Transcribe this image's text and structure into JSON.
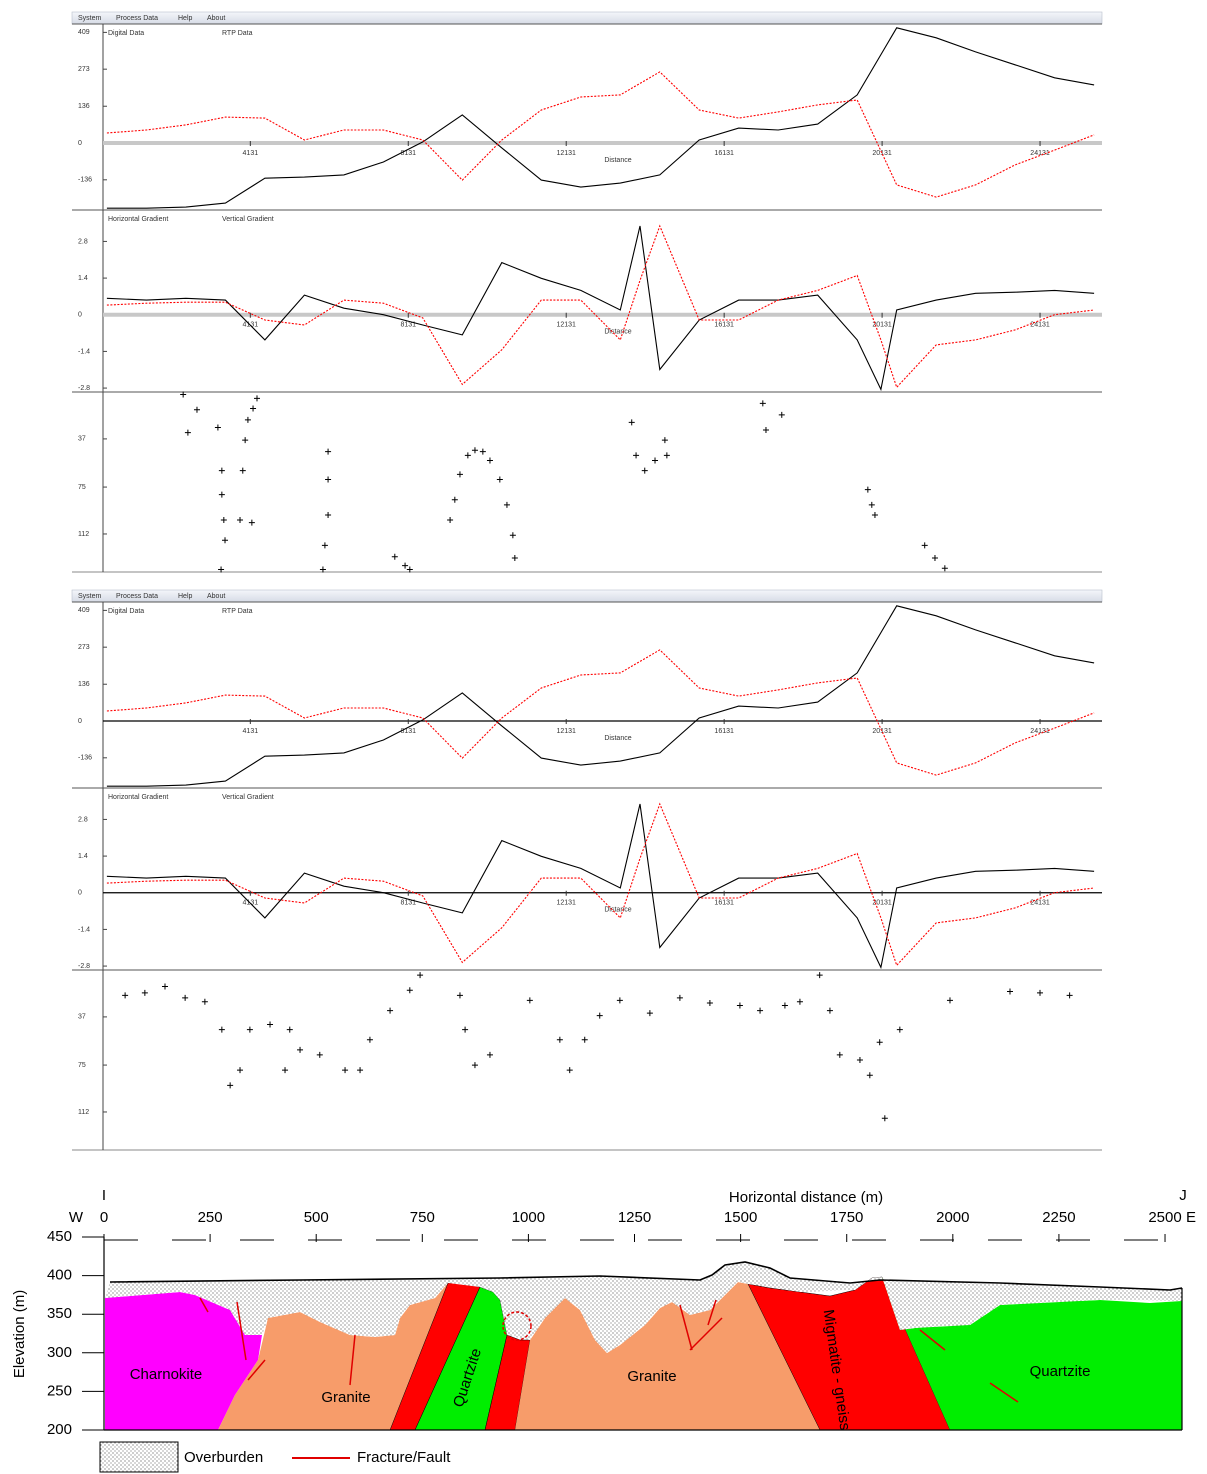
{
  "screens": [
    {
      "menu": [
        "System",
        "Process Data",
        "Help",
        "About"
      ]
    },
    {
      "menu": [
        "System",
        "Process Data",
        "Help",
        "About"
      ]
    }
  ],
  "chart_data": [
    {
      "type": "line",
      "xlabel": "Distance",
      "xlim": [
        400,
        25700
      ],
      "ylim": [
        -255,
        440
      ],
      "xticks": [
        4131,
        8131,
        12131,
        16131,
        20131,
        24131
      ],
      "yticks": [
        409,
        273,
        136,
        0,
        -136
      ],
      "x": [
        500,
        1500,
        2500,
        3500,
        4500,
        5500,
        6500,
        7500,
        8500,
        9500,
        10500,
        11500,
        12500,
        13500,
        14500,
        15500,
        16500,
        17500,
        18500,
        19500,
        20500,
        21500,
        22500,
        23500,
        24500,
        25500
      ],
      "series": [
        {
          "name": "Digital Data",
          "color": "#000000",
          "values": [
            -241,
            -241,
            -237,
            -222,
            -130,
            -126,
            -118,
            -70,
            4,
            104,
            -18,
            -137,
            -163,
            -148,
            -118,
            11,
            55,
            48,
            70,
            178,
            426,
            389,
            337,
            289,
            241,
            215
          ]
        },
        {
          "name": "RTP Data",
          "color": "#ff0000",
          "values": [
            37,
            48,
            67,
            96,
            92,
            11,
            48,
            48,
            11,
            -137,
            11,
            122,
            170,
            178,
            263,
            122,
            92,
            115,
            141,
            159,
            -155,
            -200,
            -155,
            -81,
            -26,
            30
          ]
        }
      ]
    },
    {
      "type": "line",
      "xlabel": "Distance",
      "xlim": [
        400,
        25700
      ],
      "ylim": [
        -2.95,
        4.0
      ],
      "xticks": [
        4131,
        8131,
        12131,
        16131,
        20131,
        24131
      ],
      "yticks": [
        2.8,
        1.4,
        0,
        -1.4,
        -2.8
      ],
      "x": [
        500,
        1500,
        2500,
        3500,
        4500,
        5500,
        6500,
        7500,
        8500,
        9500,
        10500,
        11500,
        12500,
        13500,
        14000,
        14500,
        15500,
        16500,
        17500,
        18500,
        19500,
        20100,
        20500,
        21500,
        22500,
        23500,
        24500,
        25500
      ],
      "series": [
        {
          "name": "Horizontal Gradient",
          "color": "#000000",
          "values": [
            0.63,
            0.56,
            0.63,
            0.56,
            -0.96,
            0.75,
            0.25,
            0,
            -0.39,
            -0.77,
            1.99,
            1.39,
            0.93,
            0.18,
            3.39,
            -2.09,
            -0.2,
            0.56,
            0.56,
            0.75,
            -0.96,
            -2.85,
            0.18,
            0.56,
            0.82,
            0.86,
            0.93,
            0.82
          ]
        },
        {
          "name": "Vertical Gradient",
          "color": "#ff0000",
          "values": [
            0.37,
            0.44,
            0.48,
            0.48,
            -0.2,
            -0.39,
            0.56,
            0.44,
            -0.12,
            -2.66,
            -1.34,
            0.56,
            0.56,
            -0.96,
            1.31,
            3.39,
            -0.2,
            -0.2,
            0.56,
            0.93,
            1.5,
            -0.96,
            -2.77,
            -1.15,
            -0.96,
            -0.58,
            0,
            0.18
          ]
        }
      ]
    },
    {
      "type": "scatter",
      "color": "#000000",
      "xlim": [
        400,
        25700
      ],
      "ylim": [
        142,
        0
      ],
      "yticks": [
        37,
        75,
        112
      ],
      "x": [
        2430,
        2550,
        2780,
        3310,
        3410,
        3410,
        3460,
        3490,
        3390,
        3870,
        3940,
        4000,
        4070,
        4200,
        4300,
        4170,
        6100,
        6100,
        6100,
        6020,
        5970,
        7790,
        8050,
        8170,
        9190,
        9310,
        9440,
        9640,
        9820,
        10020,
        10200,
        10450,
        10630,
        10780,
        10830,
        13790,
        13900,
        14120,
        14380,
        14630,
        14680,
        17110,
        17190,
        17590,
        19770,
        19870,
        19950,
        21210,
        21470,
        21720
      ],
      "values": [
        2,
        32,
        14,
        28,
        62,
        81,
        101,
        117,
        140,
        101,
        62,
        38,
        22,
        13,
        5,
        103,
        47,
        69,
        97,
        121,
        140,
        130,
        137,
        140,
        101,
        85,
        65,
        50,
        46,
        47,
        54,
        69,
        89,
        113,
        131,
        24,
        50,
        62,
        54,
        38,
        50,
        9,
        30,
        18,
        77,
        89,
        97,
        121,
        131,
        139
      ]
    },
    {
      "type": "line",
      "xlabel": "Distance",
      "xlim": [
        400,
        25700
      ],
      "ylim": [
        -255,
        440
      ],
      "xticks": [
        4131,
        8131,
        12131,
        16131,
        20131,
        24131
      ],
      "yticks": [
        409,
        273,
        136,
        0,
        -136
      ],
      "x": [
        500,
        1500,
        2500,
        3500,
        4500,
        5500,
        6500,
        7500,
        8500,
        9500,
        10500,
        11500,
        12500,
        13500,
        14500,
        15500,
        16500,
        17500,
        18500,
        19500,
        20500,
        21500,
        22500,
        23500,
        24500,
        25500
      ],
      "series": [
        {
          "name": "Digital Data",
          "color": "#000000",
          "values": [
            -241,
            -241,
            -237,
            -222,
            -130,
            -126,
            -118,
            -70,
            4,
            104,
            -18,
            -137,
            -163,
            -148,
            -118,
            11,
            55,
            48,
            70,
            178,
            426,
            389,
            337,
            289,
            241,
            215
          ]
        },
        {
          "name": "RTP Data",
          "color": "#ff0000",
          "values": [
            37,
            48,
            67,
            96,
            92,
            11,
            48,
            48,
            11,
            -137,
            11,
            122,
            170,
            178,
            263,
            122,
            92,
            115,
            141,
            159,
            -155,
            -200,
            -155,
            -81,
            -26,
            30
          ]
        }
      ]
    },
    {
      "type": "line",
      "xlabel": "Distance",
      "xlim": [
        400,
        25700
      ],
      "ylim": [
        -2.95,
        4.0
      ],
      "xticks": [
        4131,
        8131,
        12131,
        16131,
        20131,
        24131
      ],
      "yticks": [
        2.8,
        1.4,
        0,
        -1.4,
        -2.8
      ],
      "x": [
        500,
        1500,
        2500,
        3500,
        4500,
        5500,
        6500,
        7500,
        8500,
        9500,
        10500,
        11500,
        12500,
        13500,
        14000,
        14500,
        15500,
        16500,
        17500,
        18500,
        19500,
        20100,
        20500,
        21500,
        22500,
        23500,
        24500,
        25500
      ],
      "series": [
        {
          "name": "Horizontal Gradient",
          "color": "#000000",
          "values": [
            0.63,
            0.56,
            0.63,
            0.56,
            -0.96,
            0.75,
            0.25,
            0,
            -0.39,
            -0.77,
            1.99,
            1.39,
            0.93,
            0.18,
            3.39,
            -2.09,
            -0.2,
            0.56,
            0.56,
            0.75,
            -0.96,
            -2.85,
            0.18,
            0.56,
            0.82,
            0.86,
            0.93,
            0.82
          ]
        },
        {
          "name": "Vertical Gradient",
          "color": "#ff0000",
          "values": [
            0.37,
            0.44,
            0.48,
            0.48,
            -0.2,
            -0.39,
            0.56,
            0.44,
            -0.12,
            -2.66,
            -1.34,
            0.56,
            0.56,
            -0.96,
            1.31,
            3.39,
            -0.2,
            -0.2,
            0.56,
            0.93,
            1.5,
            -0.96,
            -2.77,
            -1.15,
            -0.96,
            -0.58,
            0,
            0.18
          ]
        }
      ]
    },
    {
      "type": "scatter",
      "color": "#000000",
      "xlim": [
        400,
        25700
      ],
      "ylim": [
        142,
        0
      ],
      "yticks": [
        37,
        75,
        112
      ],
      "x": [
        960,
        1460,
        1970,
        2480,
        2980,
        3410,
        3620,
        3870,
        4120,
        4630,
        5130,
        5010,
        5390,
        5890,
        6530,
        6910,
        7160,
        7670,
        8170,
        8430,
        9440,
        9570,
        9820,
        10200,
        11210,
        11970,
        12220,
        12600,
        12980,
        13490,
        14250,
        15010,
        15770,
        16530,
        17040,
        17670,
        18050,
        18550,
        18810,
        19060,
        19570,
        19820,
        20070,
        20580,
        20200,
        21850,
        23370,
        24130,
        24880
      ],
      "values": [
        20,
        18,
        13,
        22,
        25,
        47,
        91,
        79,
        47,
        43,
        47,
        79,
        63,
        67,
        79,
        79,
        55,
        32,
        16,
        4,
        20,
        47,
        75,
        67,
        24,
        55,
        79,
        55,
        36,
        24,
        34,
        22,
        26,
        28,
        32,
        28,
        25,
        4,
        32,
        67,
        71,
        83,
        57,
        47,
        117,
        24,
        17,
        18,
        20
      ]
    },
    {
      "type": "section",
      "title": "Horizontal distance (m)",
      "ylabel": "Elevation (m)",
      "start_label": "I",
      "end_label": "J",
      "west_label": "W",
      "east_label": "E",
      "xlim": [
        0,
        2540
      ],
      "ylim": [
        200,
        450
      ],
      "xticks": [
        0,
        250,
        500,
        750,
        1000,
        1250,
        1500,
        1750,
        2000,
        2250,
        2500
      ],
      "yticks": [
        200,
        250,
        300,
        350,
        400,
        450
      ],
      "units": [
        "Charnokite",
        "Granite",
        "Quartzite",
        "Granite",
        "Migmatite - gneiss",
        "Quartzite"
      ],
      "legend": [
        "Overburden",
        "Fracture/Fault"
      ]
    }
  ]
}
